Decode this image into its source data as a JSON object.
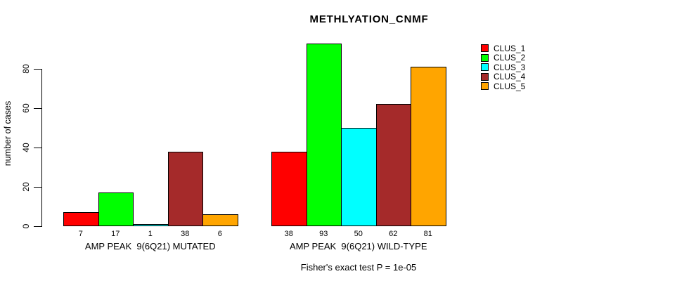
{
  "chart_data": {
    "type": "bar",
    "title": "METHLYATION_CNMF",
    "ylabel": "number of cases",
    "yticks": [
      0,
      20,
      40,
      60,
      80
    ],
    "ylim": [
      0,
      93
    ],
    "grid": false,
    "legend_position": "right-outside",
    "categories": [
      "CLUS_1",
      "CLUS_2",
      "CLUS_3",
      "CLUS_4",
      "CLUS_5"
    ],
    "groups": [
      {
        "label": "AMP PEAK  9(6Q21) MUTATED",
        "values": [
          7,
          17,
          1,
          38,
          6
        ]
      },
      {
        "label": "AMP PEAK  9(6Q21) WILD-TYPE",
        "values": [
          38,
          93,
          50,
          62,
          81
        ]
      }
    ],
    "legend": [
      {
        "label": "CLUS_1",
        "color": "#ff0000"
      },
      {
        "label": "CLUS_2",
        "color": "#00ff00"
      },
      {
        "label": "CLUS_3",
        "color": "#00ffff"
      },
      {
        "label": "CLUS_4",
        "color": "#a52a2a"
      },
      {
        "label": "CLUS_5",
        "color": "#ffa500"
      }
    ],
    "footnote": "Fisher's exact test P = 1e-05",
    "colors": {
      "background": "#ffffff",
      "axis": "#000000",
      "bar_border": "#000000",
      "text": "#000000"
    }
  }
}
